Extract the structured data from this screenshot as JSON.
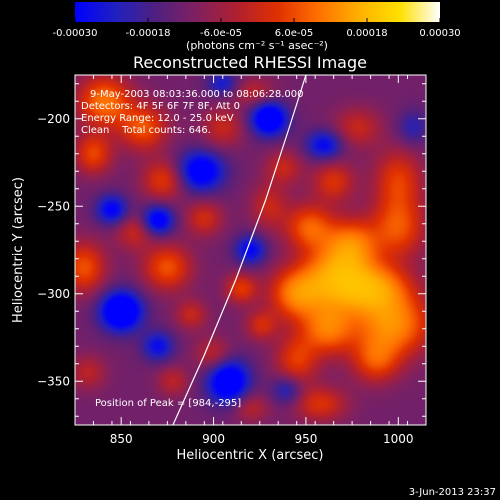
{
  "chart_data": {
    "type": "heatmap",
    "title": "Reconstructed RHESSI Image",
    "xlabel": "Heliocentric X (arcsec)",
    "ylabel": "Heliocentric Y (arcsec)",
    "xlim": [
      825,
      1015
    ],
    "ylim": [
      -375,
      -175
    ],
    "x_ticks": [
      850,
      900,
      950,
      1000
    ],
    "y_ticks": [
      -200,
      -250,
      -300,
      -350
    ],
    "colorbar": {
      "min": -0.0003,
      "max": 0.0003,
      "tick_values": [
        -0.0003,
        -0.00018,
        -6e-05,
        6e-05,
        0.00018,
        0.0003
      ],
      "tick_labels": [
        "-0.00030",
        "-0.00018",
        "-6.0e-05",
        "6.0e-05",
        "0.00018",
        "0.00030"
      ],
      "units_label": "(photons cm⁻² s⁻¹ asec⁻²)",
      "colormap": [
        "#0000ff",
        "#2020c0",
        "#502080",
        "#802060",
        "#b02030",
        "#e03000",
        "#ff7000",
        "#ffb000",
        "#ffe000",
        "#ffffff"
      ]
    },
    "annotations": {
      "time_range": "9-May-2003 08:03:36.000 to 08:06:28.000",
      "detectors": "Detectors: 4F 5F 6F 7F 8F, Att 0",
      "energy_range": "Energy Range: 12.0 - 25.0 keV",
      "clean_counts": "Clean    Total counts: 646.",
      "peak_position": "Position of Peak = [984,-295]"
    },
    "peak": {
      "x": 984,
      "y": -295
    },
    "limb_arc": [
      [
        878,
        -375
      ],
      [
        895,
        -335
      ],
      [
        912,
        -292
      ],
      [
        928,
        -247
      ],
      [
        941,
        -205
      ],
      [
        950,
        -175
      ]
    ],
    "blobs": [
      {
        "x": 985,
        "y": -297,
        "sx": 14,
        "sy": 10,
        "a": 1.0
      },
      {
        "x": 965,
        "y": -290,
        "sx": 12,
        "sy": 12,
        "a": 0.85
      },
      {
        "x": 945,
        "y": -300,
        "sx": 10,
        "sy": 10,
        "a": 0.8
      },
      {
        "x": 997,
        "y": -318,
        "sx": 14,
        "sy": 12,
        "a": 0.85
      },
      {
        "x": 962,
        "y": -320,
        "sx": 10,
        "sy": 10,
        "a": 0.75
      },
      {
        "x": 975,
        "y": -272,
        "sx": 10,
        "sy": 10,
        "a": 0.75
      },
      {
        "x": 952,
        "y": -262,
        "sx": 9,
        "sy": 9,
        "a": 0.65
      },
      {
        "x": 1000,
        "y": -262,
        "sx": 10,
        "sy": 12,
        "a": 0.6
      },
      {
        "x": 1000,
        "y": -235,
        "sx": 9,
        "sy": 12,
        "a": 0.5
      },
      {
        "x": 988,
        "y": -338,
        "sx": 9,
        "sy": 9,
        "a": 0.55
      },
      {
        "x": 945,
        "y": -338,
        "sx": 8,
        "sy": 10,
        "a": 0.5
      },
      {
        "x": 915,
        "y": -297,
        "sx": 6,
        "sy": 6,
        "a": 0.5
      },
      {
        "x": 926,
        "y": -318,
        "sx": 6,
        "sy": 6,
        "a": 0.4
      },
      {
        "x": 965,
        "y": -236,
        "sx": 8,
        "sy": 8,
        "a": 0.45
      },
      {
        "x": 930,
        "y": -250,
        "sx": 7,
        "sy": 9,
        "a": 0.35
      },
      {
        "x": 938,
        "y": -228,
        "sx": 7,
        "sy": 7,
        "a": 0.35
      },
      {
        "x": 978,
        "y": -205,
        "sx": 9,
        "sy": 8,
        "a": 0.35
      },
      {
        "x": 958,
        "y": -363,
        "sx": 10,
        "sy": 7,
        "a": 0.45
      },
      {
        "x": 920,
        "y": -365,
        "sx": 7,
        "sy": 6,
        "a": 0.3
      },
      {
        "x": 841,
        "y": -190,
        "sx": 10,
        "sy": 10,
        "a": 0.75
      },
      {
        "x": 862,
        "y": -205,
        "sx": 9,
        "sy": 9,
        "a": 0.6
      },
      {
        "x": 835,
        "y": -220,
        "sx": 7,
        "sy": 8,
        "a": 0.55
      },
      {
        "x": 873,
        "y": -235,
        "sx": 8,
        "sy": 8,
        "a": 0.5
      },
      {
        "x": 830,
        "y": -285,
        "sx": 8,
        "sy": 10,
        "a": 0.6
      },
      {
        "x": 875,
        "y": -285,
        "sx": 9,
        "sy": 9,
        "a": 0.6
      },
      {
        "x": 895,
        "y": -257,
        "sx": 7,
        "sy": 7,
        "a": 0.4
      },
      {
        "x": 857,
        "y": -265,
        "sx": 7,
        "sy": 7,
        "a": 0.35
      },
      {
        "x": 888,
        "y": -312,
        "sx": 6,
        "sy": 6,
        "a": 0.35
      },
      {
        "x": 900,
        "y": -335,
        "sx": 7,
        "sy": 7,
        "a": 0.35
      },
      {
        "x": 832,
        "y": -345,
        "sx": 7,
        "sy": 7,
        "a": 0.3
      },
      {
        "x": 878,
        "y": -350,
        "sx": 6,
        "sy": 6,
        "a": 0.3
      },
      {
        "x": 905,
        "y": -205,
        "sx": 8,
        "sy": 8,
        "a": 0.35
      },
      {
        "x": 922,
        "y": -185,
        "sx": 8,
        "sy": 6,
        "a": 0.3
      },
      {
        "x": 850,
        "y": -310,
        "sx": 8,
        "sy": 8,
        "a": -0.95
      },
      {
        "x": 908,
        "y": -350,
        "sx": 8,
        "sy": 9,
        "a": -0.85
      },
      {
        "x": 893,
        "y": -230,
        "sx": 9,
        "sy": 8,
        "a": -0.75
      },
      {
        "x": 930,
        "y": -200,
        "sx": 7,
        "sy": 7,
        "a": -0.85
      },
      {
        "x": 870,
        "y": -258,
        "sx": 6,
        "sy": 6,
        "a": -0.7
      },
      {
        "x": 845,
        "y": -252,
        "sx": 6,
        "sy": 6,
        "a": -0.6
      },
      {
        "x": 960,
        "y": -215,
        "sx": 7,
        "sy": 6,
        "a": -0.55
      },
      {
        "x": 920,
        "y": -275,
        "sx": 6,
        "sy": 6,
        "a": -0.55
      },
      {
        "x": 940,
        "y": -355,
        "sx": 6,
        "sy": 6,
        "a": -0.4
      },
      {
        "x": 870,
        "y": -330,
        "sx": 6,
        "sy": 6,
        "a": -0.5
      },
      {
        "x": 1008,
        "y": -205,
        "sx": 6,
        "sy": 7,
        "a": -0.3
      },
      {
        "x": 905,
        "y": -180,
        "sx": 6,
        "sy": 5,
        "a": -0.4
      }
    ]
  },
  "footer": {
    "date": "3-Jun-2013 23:37"
  }
}
